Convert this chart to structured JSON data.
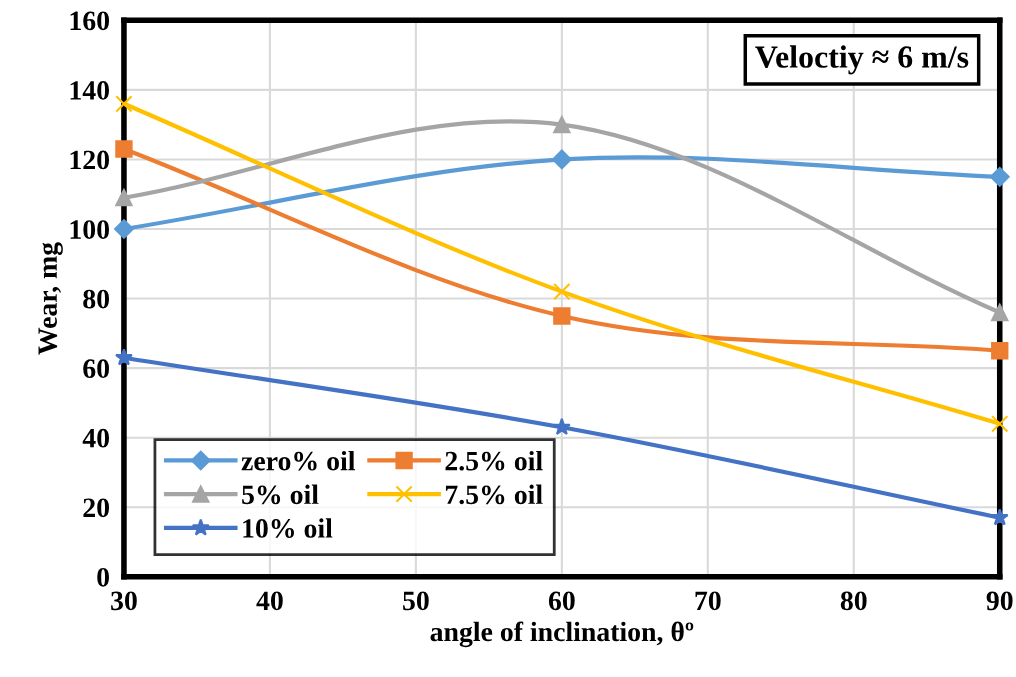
{
  "chart_data": {
    "type": "line",
    "xlabel": "angle of inclination, θº",
    "ylabel": "Wear, mg",
    "x": [
      30,
      60,
      90
    ],
    "series": [
      {
        "name": "zero% oil",
        "color": "#5b9bd5",
        "marker": "diamond",
        "values": [
          100,
          120,
          115
        ]
      },
      {
        "name": "2.5% oil",
        "color": "#ed7d31",
        "marker": "square",
        "values": [
          123,
          75,
          65
        ]
      },
      {
        "name": "5% oil",
        "color": "#a5a5a5",
        "marker": "triangle",
        "values": [
          109,
          130,
          76
        ]
      },
      {
        "name": "7.5% oil",
        "color": "#ffc000",
        "marker": "cross",
        "values": [
          136,
          82,
          44
        ]
      },
      {
        "name": "10% oil",
        "color": "#4472c4",
        "marker": "star",
        "values": [
          63,
          43,
          17
        ]
      }
    ],
    "xlim": [
      30,
      90
    ],
    "xticks": [
      30,
      40,
      50,
      60,
      70,
      80,
      90
    ],
    "ylim": [
      0,
      160
    ],
    "yticks": [
      0,
      20,
      40,
      60,
      80,
      100,
      120,
      140,
      160
    ],
    "grid": true,
    "legend": "bottom left",
    "annotations": [
      "Veloctiy ≈ 6 m/s"
    ]
  }
}
